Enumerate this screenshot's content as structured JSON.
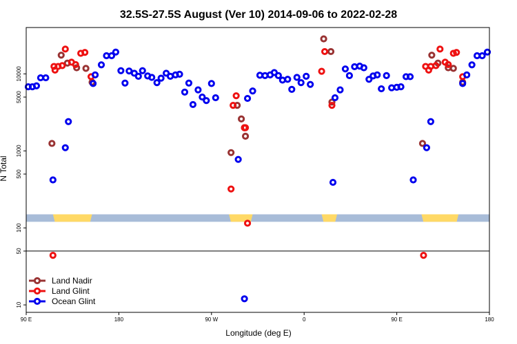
{
  "chart_data": {
    "type": "scatter",
    "title": "32.5S-27.5S August (Ver 10)   2014-09-06 to 2022-02-28",
    "xlabel": "Longitude (deg E)",
    "ylabel": "N Total",
    "x_scale": "linear",
    "y_scale": "log",
    "xlim": [
      90,
      540
    ],
    "ylim": [
      8,
      40000
    ],
    "x_ticks": [
      {
        "value": 90,
        "label": "90 E"
      },
      {
        "value": 180,
        "label": "180"
      },
      {
        "value": 270,
        "label": "90 W"
      },
      {
        "value": 360,
        "label": "0"
      },
      {
        "value": 450,
        "label": "90 E"
      },
      {
        "value": 540,
        "label": "180"
      }
    ],
    "y_ticks": [
      {
        "value": 10,
        "label": "10"
      },
      {
        "value": 50,
        "label": "50"
      },
      {
        "value": 100,
        "label": "100"
      },
      {
        "value": 500,
        "label": "500"
      },
      {
        "value": 1000,
        "label": "1000"
      },
      {
        "value": 5000,
        "label": "5000"
      },
      {
        "value": 10000,
        "label": "10000"
      }
    ],
    "reference_line": 50,
    "land_band_y": [
      120,
      150
    ],
    "land_segments": [
      {
        "x": [
          116,
          154
        ],
        "color": "#ffd966"
      },
      {
        "x": [
          287,
          310
        ],
        "color": "#ffd966"
      },
      {
        "x": [
          377,
          392
        ],
        "color": "#ffd966"
      },
      {
        "x": [
          474,
          510
        ],
        "color": "#ffd966"
      }
    ],
    "ocean_band_color": "#a8bcd8",
    "legend_position": "bottom-left",
    "series": [
      {
        "name": "Land Nadir",
        "color": "#993333",
        "points": [
          [
            115,
            1250
          ],
          [
            124,
            17500
          ],
          [
            130,
            13800
          ],
          [
            139,
            12000
          ],
          [
            148,
            11800
          ],
          [
            154,
            7800
          ],
          [
            289,
            950
          ],
          [
            295,
            3900
          ],
          [
            299,
            2600
          ],
          [
            302,
            2000
          ],
          [
            303,
            1550
          ],
          [
            379,
            28500
          ],
          [
            386,
            19500
          ],
          [
            387,
            4300
          ],
          [
            475,
            1250
          ],
          [
            484,
            17500
          ],
          [
            490,
            13800
          ],
          [
            500,
            12000
          ],
          [
            505,
            11800
          ],
          [
            514,
            7800
          ]
        ]
      },
      {
        "name": "Land Glint",
        "color": "#ee1111",
        "points": [
          [
            116,
            44
          ],
          [
            117,
            12500
          ],
          [
            118,
            11200
          ],
          [
            121,
            12500
          ],
          [
            125,
            12800
          ],
          [
            128,
            21000
          ],
          [
            134,
            14200
          ],
          [
            138,
            13200
          ],
          [
            143,
            18500
          ],
          [
            147,
            19000
          ],
          [
            153,
            9200
          ],
          [
            289,
            320
          ],
          [
            291,
            3900
          ],
          [
            294,
            5200
          ],
          [
            302,
            2000
          ],
          [
            303,
            2000
          ],
          [
            305,
            115
          ],
          [
            377,
            10800
          ],
          [
            380,
            19500
          ],
          [
            387,
            3900
          ],
          [
            476,
            44
          ],
          [
            478,
            12500
          ],
          [
            481,
            11200
          ],
          [
            483,
            12500
          ],
          [
            488,
            12800
          ],
          [
            492,
            21000
          ],
          [
            497,
            14200
          ],
          [
            500,
            13200
          ],
          [
            505,
            18500
          ],
          [
            508,
            19000
          ],
          [
            514,
            9200
          ]
        ]
      },
      {
        "name": "Ocean Glint",
        "color": "#0000ee",
        "points": [
          [
            92,
            6800
          ],
          [
            96,
            6800
          ],
          [
            100,
            7000
          ],
          [
            104,
            8900
          ],
          [
            109,
            8900
          ],
          [
            116,
            420
          ],
          [
            128,
            1100
          ],
          [
            131,
            2400
          ],
          [
            155,
            7500
          ],
          [
            157,
            9700
          ],
          [
            163,
            13100
          ],
          [
            168,
            17200
          ],
          [
            173,
            17200
          ],
          [
            177,
            19200
          ],
          [
            182,
            11000
          ],
          [
            186,
            7600
          ],
          [
            190,
            10900
          ],
          [
            195,
            10200
          ],
          [
            199,
            9300
          ],
          [
            203,
            11000
          ],
          [
            208,
            9400
          ],
          [
            212,
            9000
          ],
          [
            217,
            7700
          ],
          [
            221,
            8800
          ],
          [
            226,
            10200
          ],
          [
            230,
            9300
          ],
          [
            235,
            9700
          ],
          [
            239,
            9900
          ],
          [
            244,
            5800
          ],
          [
            248,
            7600
          ],
          [
            252,
            4000
          ],
          [
            257,
            6200
          ],
          [
            261,
            5000
          ],
          [
            265,
            4500
          ],
          [
            270,
            7500
          ],
          [
            274,
            4900
          ],
          [
            296,
            775
          ],
          [
            302,
            12
          ],
          [
            305,
            4800
          ],
          [
            310,
            6000
          ],
          [
            317,
            9600
          ],
          [
            322,
            9500
          ],
          [
            327,
            9700
          ],
          [
            331,
            10400
          ],
          [
            335,
            9500
          ],
          [
            339,
            8300
          ],
          [
            344,
            8500
          ],
          [
            348,
            6300
          ],
          [
            353,
            9000
          ],
          [
            357,
            7700
          ],
          [
            362,
            9300
          ],
          [
            366,
            7300
          ],
          [
            388,
            390
          ],
          [
            390,
            4900
          ],
          [
            395,
            6200
          ],
          [
            400,
            11600
          ],
          [
            404,
            9500
          ],
          [
            409,
            12400
          ],
          [
            414,
            12600
          ],
          [
            418,
            12000
          ],
          [
            423,
            8500
          ],
          [
            427,
            9400
          ],
          [
            431,
            9700
          ],
          [
            435,
            6400
          ],
          [
            440,
            9500
          ],
          [
            445,
            6600
          ],
          [
            450,
            6700
          ],
          [
            454,
            6800
          ],
          [
            459,
            9200
          ],
          [
            463,
            9200
          ],
          [
            466,
            420
          ],
          [
            479,
            1100
          ],
          [
            483,
            2400
          ],
          [
            514,
            7500
          ],
          [
            518,
            9700
          ],
          [
            523,
            13100
          ],
          [
            528,
            17200
          ],
          [
            533,
            17200
          ],
          [
            538,
            19200
          ]
        ]
      }
    ]
  }
}
